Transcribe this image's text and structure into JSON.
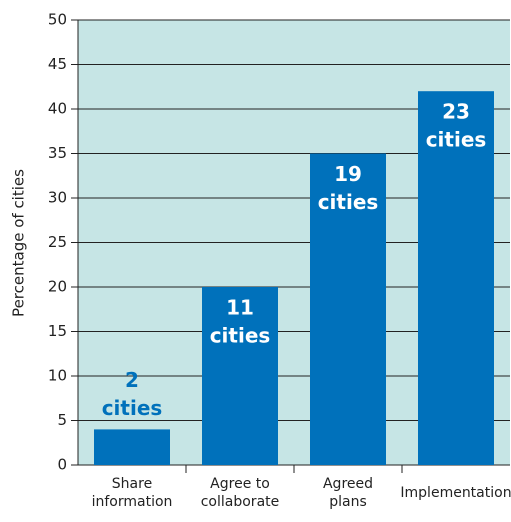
{
  "chart_data": {
    "type": "bar",
    "y_label": "Percentage of cities",
    "categories": [
      [
        "Share",
        "information"
      ],
      [
        "Agree to",
        "collaborate"
      ],
      [
        "Agreed",
        "plans"
      ],
      [
        "Implementation"
      ]
    ],
    "values": [
      4,
      20,
      35,
      42
    ],
    "bar_labels": [
      [
        "2",
        "cities"
      ],
      [
        "11",
        "cities"
      ],
      [
        "19",
        "cities"
      ],
      [
        "23",
        "cities"
      ]
    ],
    "color": "#0071bb",
    "background": "#c6e5e5",
    "ylim": [
      0,
      50
    ],
    "yticks": [
      0,
      5,
      10,
      15,
      20,
      25,
      30,
      35,
      40,
      45,
      50
    ],
    "grid": true
  }
}
